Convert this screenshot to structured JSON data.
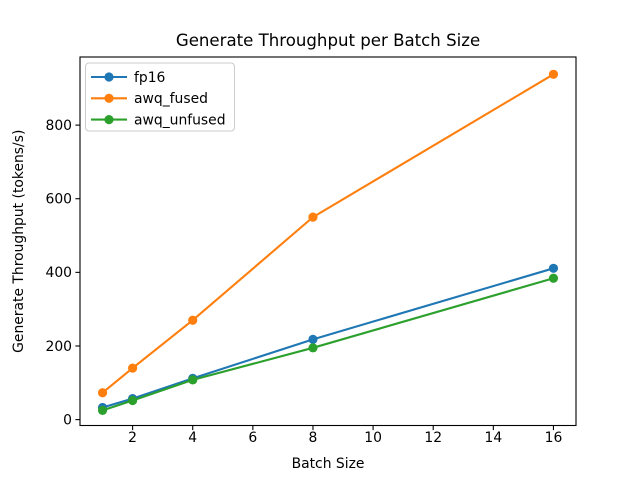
{
  "chart_data": {
    "type": "line",
    "title": "Generate Throughput per Batch Size",
    "xlabel": "Batch Size",
    "ylabel": "Generate Throughput (tokens/s)",
    "x": [
      1,
      2,
      4,
      8,
      16
    ],
    "series": [
      {
        "name": "fp16",
        "color": "#1f77b4",
        "values": [
          33,
          57,
          112,
          218,
          411
        ]
      },
      {
        "name": "awq_fused",
        "color": "#ff7f0e",
        "values": [
          73,
          140,
          270,
          550,
          938
        ]
      },
      {
        "name": "awq_unfused",
        "color": "#2ca02c",
        "values": [
          25,
          52,
          108,
          195,
          384
        ]
      }
    ],
    "xticks": [
      2,
      4,
      6,
      8,
      10,
      12,
      14,
      16
    ],
    "yticks": [
      0,
      200,
      400,
      600,
      800
    ],
    "xlim": [
      0.25,
      16.75
    ],
    "ylim": [
      -16,
      985
    ],
    "grid": false,
    "legend_position": "upper left",
    "marker": "o",
    "axis_color": "#000000",
    "background_color": "#ffffff",
    "legend_border_color": "#cccccc"
  }
}
